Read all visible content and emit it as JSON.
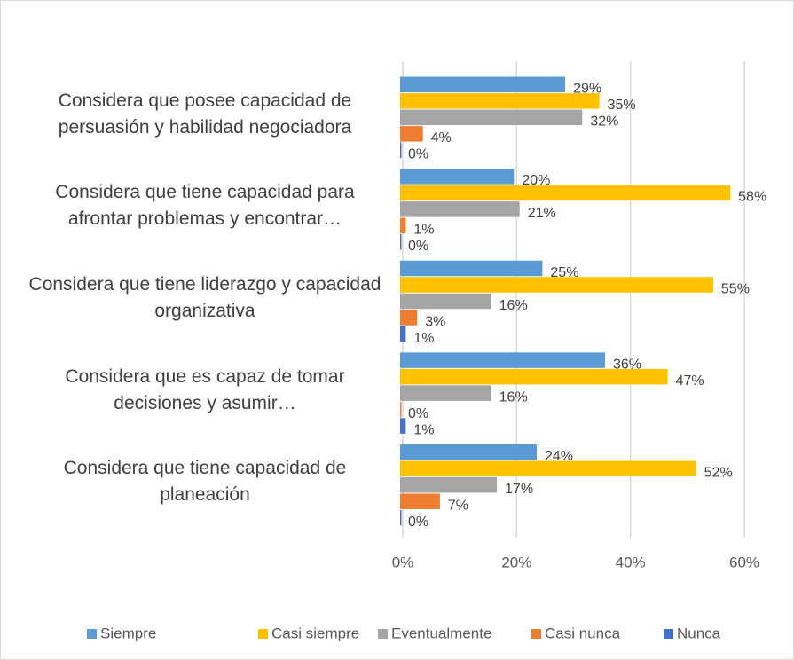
{
  "chart_data": {
    "type": "bar",
    "categories": [
      "Considera que posee capacidad de persuasión y habilidad negociadora",
      "Considera que tiene capacidad para afrontar problemas y encontrar…",
      "Considera que tiene liderazgo y capacidad organizativa",
      "Considera que es capaz de tomar decisiones y asumir…",
      "Considera que tiene capacidad de planeación"
    ],
    "series": [
      {
        "name": "Siempre",
        "color": "#5b9bd5",
        "values": [
          29,
          20,
          25,
          36,
          24
        ],
        "value_labels": [
          "29%",
          "20%",
          "25%",
          "36%",
          "24%"
        ]
      },
      {
        "name": "Casi siempre",
        "color": "#ffc000",
        "values": [
          35,
          58,
          55,
          47,
          52
        ],
        "value_labels": [
          "35%",
          "58%",
          "55%",
          "47%",
          "52%"
        ]
      },
      {
        "name": "Eventualmente",
        "color": "#a5a5a5",
        "values": [
          32,
          21,
          16,
          16,
          17
        ],
        "value_labels": [
          "32%",
          "21%",
          "16%",
          "16%",
          "17%"
        ]
      },
      {
        "name": "Casi nunca",
        "color": "#ed7d31",
        "values": [
          4,
          1,
          3,
          0,
          7
        ],
        "value_labels": [
          "4%",
          "1%",
          "3%",
          "0%",
          "7%"
        ]
      },
      {
        "name": "Nunca",
        "color": "#4472c4",
        "values": [
          0,
          0,
          1,
          1,
          0
        ],
        "value_labels": [
          "0%",
          "0%",
          "1%",
          "1%",
          "0%"
        ]
      }
    ],
    "xlim": [
      0,
      60
    ],
    "xticks": [
      {
        "value": 0,
        "label": "0%"
      },
      {
        "value": 20,
        "label": "20%"
      },
      {
        "value": 40,
        "label": "40%"
      },
      {
        "value": 60,
        "label": "60%"
      }
    ],
    "grid": true,
    "legend": "bottom"
  }
}
